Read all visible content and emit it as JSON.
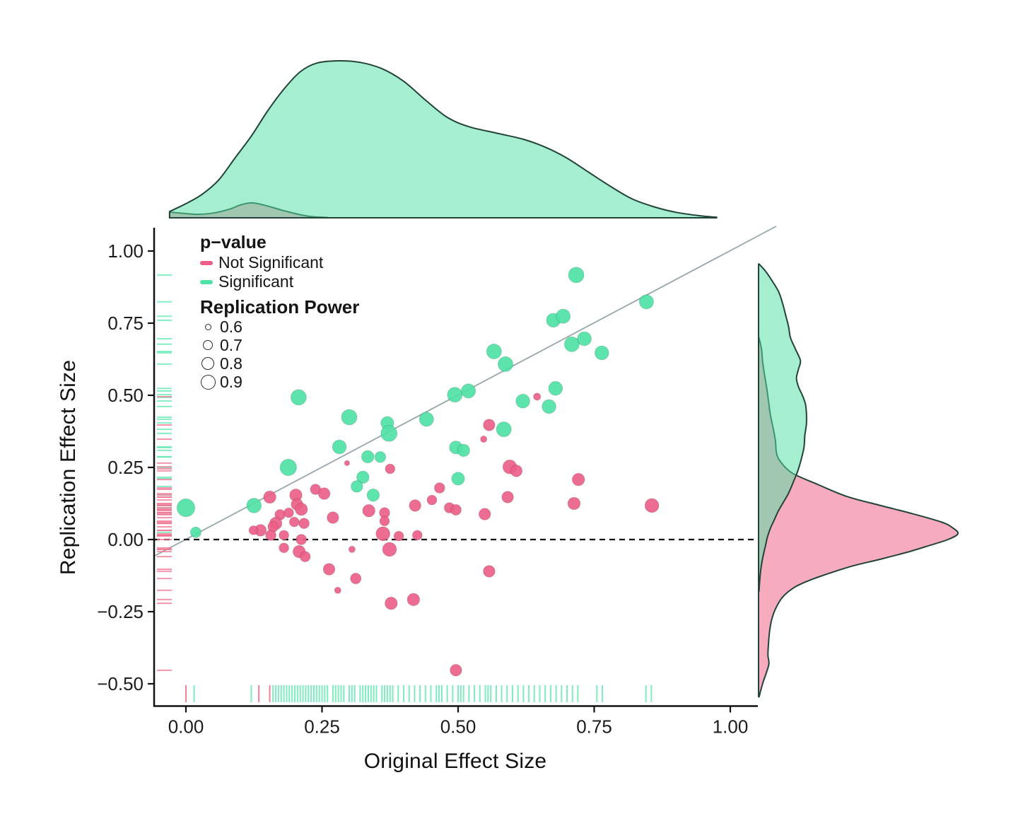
{
  "figure": {
    "x_axis": {
      "title": "Original Effect Size",
      "tick_labels": [
        "0.00",
        "0.25",
        "0.50",
        "0.75",
        "1.00"
      ],
      "tick_values": [
        0,
        0.25,
        0.5,
        0.75,
        1.0
      ],
      "range": [
        -0.06,
        1.05
      ]
    },
    "y_axis": {
      "title": "Replication Effect Size",
      "tick_labels": [
        "1.00",
        "0.75",
        "0.50",
        "0.25",
        "0.00",
        "−0.25",
        "−0.50"
      ],
      "tick_values": [
        1.0,
        0.75,
        0.5,
        0.25,
        0.0,
        -0.25,
        -0.5
      ],
      "range": [
        -0.57,
        1.07
      ]
    },
    "legend": {
      "pvalue_title": "p−value",
      "items": [
        {
          "label": "Not Significant",
          "color": "#ec5f88"
        },
        {
          "label": "Significant",
          "color": "#4fe1a5"
        }
      ],
      "power_title": "Replication Power",
      "power_items": [
        {
          "label": "0.6",
          "diameter": 7
        },
        {
          "label": "0.7",
          "diameter": 12
        },
        {
          "label": "0.8",
          "diameter": 16
        },
        {
          "label": "0.9",
          "diameter": 19
        }
      ]
    },
    "colors": {
      "significant": "#4fe1a5",
      "not_significant": "#ec5f88",
      "density_green": "#52e0a5",
      "density_pink": "#f5a7bb",
      "density_outline": "#22433a",
      "rug_green": "#5ce8ae",
      "rug_pink": "#f0718f",
      "diagonal": "#97a6ab",
      "zero_line": "#111111",
      "axis": "#111111"
    }
  },
  "chart_data": {
    "type": "scatter",
    "title": "",
    "xlabel": "Original Effect Size",
    "ylabel": "Replication Effect Size",
    "xlim": [
      -0.06,
      1.05
    ],
    "ylim": [
      -0.57,
      1.07
    ],
    "grid": false,
    "legend_position": "top-left-inside",
    "points_format": [
      "x",
      "y",
      "significant(1=green,0=pink)",
      "replication_power"
    ],
    "points": [
      [
        0.0,
        0.11,
        1,
        0.97
      ],
      [
        0.018,
        0.025,
        1,
        0.75
      ],
      [
        0.125,
        0.118,
        1,
        0.87
      ],
      [
        0.188,
        0.25,
        1,
        0.93
      ],
      [
        0.207,
        0.493,
        1,
        0.9
      ],
      [
        0.3,
        0.424,
        1,
        0.9
      ],
      [
        0.282,
        0.321,
        1,
        0.85
      ],
      [
        0.334,
        0.287,
        1,
        0.8
      ],
      [
        0.357,
        0.286,
        1,
        0.76
      ],
      [
        0.325,
        0.216,
        1,
        0.8
      ],
      [
        0.314,
        0.184,
        1,
        0.78
      ],
      [
        0.344,
        0.154,
        1,
        0.8
      ],
      [
        0.37,
        0.404,
        1,
        0.82
      ],
      [
        0.373,
        0.368,
        1,
        0.92
      ],
      [
        0.442,
        0.417,
        1,
        0.86
      ],
      [
        0.494,
        0.502,
        1,
        0.88
      ],
      [
        0.519,
        0.515,
        1,
        0.86
      ],
      [
        0.496,
        0.319,
        1,
        0.82
      ],
      [
        0.5,
        0.211,
        1,
        0.82
      ],
      [
        0.51,
        0.309,
        1,
        0.8
      ],
      [
        0.566,
        0.652,
        1,
        0.88
      ],
      [
        0.587,
        0.608,
        1,
        0.88
      ],
      [
        0.584,
        0.382,
        1,
        0.88
      ],
      [
        0.619,
        0.48,
        1,
        0.85
      ],
      [
        0.667,
        0.461,
        1,
        0.85
      ],
      [
        0.679,
        0.524,
        1,
        0.85
      ],
      [
        0.675,
        0.76,
        1,
        0.85
      ],
      [
        0.693,
        0.774,
        1,
        0.86
      ],
      [
        0.709,
        0.677,
        1,
        0.88
      ],
      [
        0.732,
        0.696,
        1,
        0.85
      ],
      [
        0.764,
        0.647,
        1,
        0.85
      ],
      [
        0.717,
        0.917,
        1,
        0.9
      ],
      [
        0.846,
        0.824,
        1,
        0.86
      ],
      [
        0.154,
        0.147,
        0,
        0.8
      ],
      [
        0.202,
        0.154,
        0,
        0.8
      ],
      [
        0.204,
        0.122,
        0,
        0.78
      ],
      [
        0.212,
        0.105,
        0,
        0.8
      ],
      [
        0.238,
        0.174,
        0,
        0.74
      ],
      [
        0.254,
        0.159,
        0,
        0.78
      ],
      [
        0.173,
        0.086,
        0,
        0.74
      ],
      [
        0.189,
        0.093,
        0,
        0.72
      ],
      [
        0.165,
        0.056,
        0,
        0.8
      ],
      [
        0.16,
        0.044,
        0,
        0.74
      ],
      [
        0.137,
        0.032,
        0,
        0.78
      ],
      [
        0.124,
        0.032,
        0,
        0.7
      ],
      [
        0.156,
        0.015,
        0,
        0.74
      ],
      [
        0.18,
        0.015,
        0,
        0.72
      ],
      [
        0.199,
        0.061,
        0,
        0.72
      ],
      [
        0.217,
        0.056,
        0,
        0.74
      ],
      [
        0.27,
        0.076,
        0,
        0.78
      ],
      [
        0.212,
        0.0,
        0,
        0.74
      ],
      [
        0.18,
        -0.029,
        0,
        0.72
      ],
      [
        0.208,
        -0.042,
        0,
        0.8
      ],
      [
        0.219,
        -0.059,
        0,
        0.74
      ],
      [
        0.263,
        -0.103,
        0,
        0.78
      ],
      [
        0.305,
        -0.034,
        0,
        0.62
      ],
      [
        0.336,
        0.1,
        0,
        0.8
      ],
      [
        0.365,
        0.093,
        0,
        0.74
      ],
      [
        0.365,
        0.064,
        0,
        0.72
      ],
      [
        0.362,
        0.02,
        0,
        0.85
      ],
      [
        0.391,
        0.012,
        0,
        0.72
      ],
      [
        0.374,
        -0.034,
        0,
        0.85
      ],
      [
        0.421,
        0.118,
        0,
        0.78
      ],
      [
        0.425,
        0.015,
        0,
        0.72
      ],
      [
        0.452,
        0.137,
        0,
        0.72
      ],
      [
        0.466,
        0.179,
        0,
        0.74
      ],
      [
        0.484,
        0.11,
        0,
        0.74
      ],
      [
        0.496,
        0.103,
        0,
        0.75
      ],
      [
        0.375,
        0.245,
        0,
        0.72
      ],
      [
        0.296,
        0.265,
        0,
        0.58
      ],
      [
        0.312,
        -0.135,
        0,
        0.75
      ],
      [
        0.279,
        -0.176,
        0,
        0.62
      ],
      [
        0.377,
        -0.221,
        0,
        0.8
      ],
      [
        0.418,
        -0.208,
        0,
        0.8
      ],
      [
        0.496,
        -0.453,
        0,
        0.78
      ],
      [
        0.557,
        -0.11,
        0,
        0.78
      ],
      [
        0.547,
        0.348,
        0,
        0.62
      ],
      [
        0.557,
        0.397,
        0,
        0.78
      ],
      [
        0.595,
        0.252,
        0,
        0.85
      ],
      [
        0.607,
        0.238,
        0,
        0.78
      ],
      [
        0.591,
        0.147,
        0,
        0.78
      ],
      [
        0.549,
        0.088,
        0,
        0.78
      ],
      [
        0.645,
        0.495,
        0,
        0.64
      ],
      [
        0.721,
        0.208,
        0,
        0.8
      ],
      [
        0.713,
        0.125,
        0,
        0.8
      ],
      [
        0.856,
        0.118,
        0,
        0.85
      ]
    ],
    "rug_bottom": {
      "green_x": [
        0.015,
        0.12,
        0.16,
        0.165,
        0.17,
        0.175,
        0.18,
        0.185,
        0.19,
        0.195,
        0.2,
        0.205,
        0.21,
        0.215,
        0.22,
        0.225,
        0.23,
        0.235,
        0.24,
        0.245,
        0.25,
        0.255,
        0.26,
        0.27,
        0.275,
        0.28,
        0.285,
        0.29,
        0.3,
        0.305,
        0.31,
        0.32,
        0.325,
        0.33,
        0.335,
        0.34,
        0.345,
        0.35,
        0.36,
        0.365,
        0.37,
        0.375,
        0.38,
        0.39,
        0.4,
        0.41,
        0.42,
        0.43,
        0.44,
        0.45,
        0.46,
        0.465,
        0.47,
        0.48,
        0.49,
        0.5,
        0.505,
        0.51,
        0.52,
        0.53,
        0.54,
        0.55,
        0.555,
        0.56,
        0.57,
        0.58,
        0.59,
        0.6,
        0.61,
        0.62,
        0.63,
        0.64,
        0.65,
        0.66,
        0.67,
        0.68,
        0.69,
        0.7,
        0.71,
        0.72,
        0.755,
        0.765,
        0.845,
        0.855
      ],
      "pink_x": [
        0.0,
        0.134,
        0.154
      ]
    },
    "density_top": {
      "note": "height relative to green max",
      "significant": [
        [
          -0.03,
          0.04
        ],
        [
          0.0,
          0.09
        ],
        [
          0.03,
          0.15
        ],
        [
          0.06,
          0.24
        ],
        [
          0.09,
          0.38
        ],
        [
          0.12,
          0.52
        ],
        [
          0.15,
          0.68
        ],
        [
          0.18,
          0.82
        ],
        [
          0.21,
          0.93
        ],
        [
          0.24,
          0.985
        ],
        [
          0.28,
          1.0
        ],
        [
          0.32,
          0.99
        ],
        [
          0.36,
          0.95
        ],
        [
          0.4,
          0.87
        ],
        [
          0.44,
          0.75
        ],
        [
          0.48,
          0.64
        ],
        [
          0.52,
          0.58
        ],
        [
          0.57,
          0.54
        ],
        [
          0.62,
          0.5
        ],
        [
          0.66,
          0.45
        ],
        [
          0.7,
          0.38
        ],
        [
          0.74,
          0.29
        ],
        [
          0.78,
          0.2
        ],
        [
          0.82,
          0.12
        ],
        [
          0.86,
          0.07
        ],
        [
          0.9,
          0.035
        ],
        [
          0.94,
          0.015
        ],
        [
          0.975,
          0.003
        ]
      ],
      "not_significant": [
        [
          -0.03,
          0.036
        ],
        [
          0.0,
          0.027
        ],
        [
          0.02,
          0.022
        ],
        [
          0.05,
          0.03
        ],
        [
          0.08,
          0.055
        ],
        [
          0.1,
          0.082
        ],
        [
          0.122,
          0.095
        ],
        [
          0.15,
          0.075
        ],
        [
          0.18,
          0.045
        ],
        [
          0.21,
          0.02
        ],
        [
          0.23,
          0.008
        ],
        [
          0.26,
          0.002
        ]
      ]
    },
    "density_right": {
      "note": "width relative to pink max",
      "significant": [
        [
          0.955,
          0.003
        ],
        [
          0.93,
          0.035
        ],
        [
          0.9,
          0.065
        ],
        [
          0.86,
          0.1
        ],
        [
          0.82,
          0.12
        ],
        [
          0.78,
          0.135
        ],
        [
          0.74,
          0.15
        ],
        [
          0.7,
          0.16
        ],
        [
          0.66,
          0.185
        ],
        [
          0.62,
          0.21
        ],
        [
          0.59,
          0.2
        ],
        [
          0.56,
          0.19
        ],
        [
          0.53,
          0.2
        ],
        [
          0.5,
          0.22
        ],
        [
          0.47,
          0.235
        ],
        [
          0.44,
          0.24
        ],
        [
          0.4,
          0.24
        ],
        [
          0.36,
          0.232
        ],
        [
          0.32,
          0.228
        ],
        [
          0.28,
          0.215
        ],
        [
          0.24,
          0.198
        ],
        [
          0.2,
          0.175
        ],
        [
          0.16,
          0.15
        ],
        [
          0.13,
          0.125
        ],
        [
          0.1,
          0.1
        ],
        [
          0.07,
          0.08
        ],
        [
          0.04,
          0.06
        ],
        [
          0.01,
          0.045
        ],
        [
          -0.02,
          0.035
        ],
        [
          -0.06,
          0.022
        ],
        [
          -0.1,
          0.012
        ],
        [
          -0.14,
          0.006
        ],
        [
          -0.18,
          0.002
        ]
      ],
      "not_significant": [
        [
          0.7,
          0.002
        ],
        [
          0.66,
          0.015
        ],
        [
          0.62,
          0.02
        ],
        [
          0.58,
          0.028
        ],
        [
          0.53,
          0.04
        ],
        [
          0.48,
          0.05
        ],
        [
          0.43,
          0.06
        ],
        [
          0.38,
          0.075
        ],
        [
          0.34,
          0.085
        ],
        [
          0.3,
          0.09
        ],
        [
          0.27,
          0.11
        ],
        [
          0.23,
          0.17
        ],
        [
          0.19,
          0.3
        ],
        [
          0.15,
          0.44
        ],
        [
          0.12,
          0.6
        ],
        [
          0.09,
          0.77
        ],
        [
          0.06,
          0.92
        ],
        [
          0.04,
          0.975
        ],
        [
          0.02,
          1.0
        ],
        [
          0.0,
          0.95
        ],
        [
          -0.02,
          0.86
        ],
        [
          -0.045,
          0.74
        ],
        [
          -0.07,
          0.6
        ],
        [
          -0.09,
          0.48
        ],
        [
          -0.11,
          0.385
        ],
        [
          -0.13,
          0.3
        ],
        [
          -0.15,
          0.225
        ],
        [
          -0.17,
          0.17
        ],
        [
          -0.2,
          0.12
        ],
        [
          -0.24,
          0.085
        ],
        [
          -0.28,
          0.065
        ],
        [
          -0.32,
          0.055
        ],
        [
          -0.36,
          0.05
        ],
        [
          -0.4,
          0.047
        ],
        [
          -0.43,
          0.052
        ],
        [
          -0.46,
          0.04
        ],
        [
          -0.49,
          0.025
        ],
        [
          -0.52,
          0.012
        ],
        [
          -0.545,
          0.003
        ]
      ]
    },
    "reference_lines": {
      "diagonal": {
        "type": "identity",
        "label": "y = x",
        "style": "solid gray"
      },
      "horizontal": {
        "y": 0,
        "style": "dashed black"
      }
    }
  }
}
